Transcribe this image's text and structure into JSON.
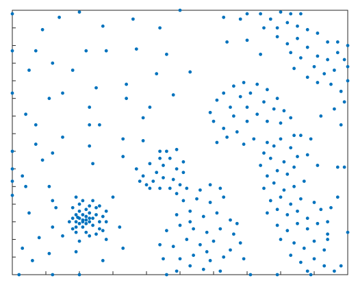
{
  "chart_data": {
    "type": "scatter",
    "color": "#0072bd",
    "xlim": [
      0,
      10
    ],
    "ylim": [
      0,
      15
    ],
    "xticks": [
      0,
      1,
      2,
      3,
      4,
      5,
      6,
      7,
      8,
      9,
      10
    ],
    "yticks": [
      0,
      1,
      2,
      3,
      4,
      5,
      6,
      7,
      8,
      9,
      10,
      11,
      12,
      13,
      14,
      15
    ],
    "x": [
      0.0,
      0.9,
      1.4,
      2.0,
      2.7,
      3.6,
      4.4,
      5.0,
      0.0,
      0.7,
      1.2,
      1.8,
      2.2,
      2.8,
      3.7,
      4.6,
      0.5,
      1.5,
      2.5,
      3.4,
      4.3,
      0.0,
      1.1,
      2.3,
      3.4,
      0.4,
      0.7,
      1.5,
      2.3,
      2.6,
      3.3,
      3.9,
      0.7,
      1.2,
      2.3,
      0.0,
      0.9,
      2.4,
      3.3,
      3.9,
      4.1,
      4.8,
      5.3,
      4.4,
      0.0,
      0.0,
      0.3,
      0.4,
      0.0,
      1.1,
      1.2,
      0.5,
      1.3,
      1.2,
      1.5,
      2.0,
      2.3,
      0.3,
      0.6,
      0.8,
      1.1,
      1.9,
      2.7,
      3.3,
      3.2,
      3.0,
      1.9,
      2.8,
      1.2,
      2.0,
      4.6,
      0.2,
      1.9,
      2.0,
      2.1,
      2.2,
      2.3,
      2.0,
      2.1,
      1.9,
      2.2,
      2.4,
      1.8,
      2.3,
      2.0,
      2.2,
      1.9,
      2.1,
      2.4,
      2.5,
      2.6,
      2.5,
      2.3,
      2.0,
      1.8,
      1.8,
      2.6,
      2.7,
      2.8,
      2.6,
      2.1,
      2.4,
      1.9,
      2.2,
      2.5,
      2.8,
      1.7,
      2.7,
      2.3,
      2.1,
      2.2,
      1.95,
      3.7,
      3.9,
      4.1,
      4.3,
      4.5,
      4.7,
      4.9,
      5.1,
      4.0,
      4.2,
      4.5,
      4.8,
      5.0,
      4.4,
      4.6,
      4.9,
      5.1,
      3.8,
      4.1,
      4.4,
      4.7,
      5.2,
      4.9,
      4.9,
      5.3,
      5.7,
      6.2,
      4.5,
      5.0,
      5.4,
      5.9,
      6.3,
      4.4,
      4.8,
      5.2,
      5.6,
      6.0,
      6.5,
      4.6,
      5.0,
      5.4,
      5.8,
      6.2,
      6.6,
      4.9,
      5.3,
      5.7,
      6.1,
      6.5,
      5.1,
      5.5,
      5.9,
      6.3,
      5.6,
      5.9,
      6.2,
      6.7,
      6.8,
      6.9,
      5.3,
      5.8,
      5.9,
      6.1,
      6.3,
      6.6,
      6.9,
      7.3,
      7.6,
      7.9,
      6.0,
      6.3,
      6.5,
      6.8,
      7.1,
      7.5,
      7.8,
      8.1,
      6.4,
      6.7,
      7.0,
      7.3,
      7.6,
      6.1,
      6.9,
      7.2,
      7.6,
      6.6,
      7.0,
      8.0,
      8.3,
      8.4,
      7.5,
      7.8,
      8.0,
      8.3,
      7.4,
      7.7,
      8.1,
      8.5,
      7.6,
      7.9,
      8.2,
      8.7,
      7.5,
      7.8,
      8.1,
      8.4,
      7.7,
      8.0,
      8.3,
      8.6,
      9.0,
      7.6,
      7.9,
      8.2,
      8.5,
      8.8,
      9.2,
      7.9,
      8.2,
      8.5,
      8.8,
      9.1,
      9.4,
      8.0,
      8.4,
      8.7,
      9.0,
      9.3,
      8.3,
      8.6,
      9.0,
      9.3,
      8.8,
      8.4,
      8.8,
      8.9,
      9.1,
      8.6,
      9.4,
      9.4,
      6.3,
      6.8,
      7.0,
      7.4,
      7.7,
      8.0,
      8.3,
      8.6,
      7.5,
      7.9,
      8.2,
      8.5,
      8.8,
      9.1,
      9.4,
      7.9,
      8.2,
      8.5,
      8.8,
      9.1,
      9.4,
      9.7,
      8.3,
      8.6,
      9.0,
      9.3,
      9.6,
      9.9,
      9.5,
      9.8,
      10.0,
      9.7,
      10.0,
      8.4,
      8.8,
      6.4,
      7.0,
      7.4,
      9.1,
      9.6,
      9.8,
      9.2,
      9.9,
      10.0,
      9.7,
      9.9,
      10.0,
      9.8,
      9.5,
      9.7,
      7.1,
      7.9,
      8.9,
      9.6
    ],
    "values": [
      14.8,
      13.9,
      14.6,
      14.9,
      14.1,
      14.5,
      14.0,
      15.0,
      12.7,
      12.7,
      12.0,
      11.6,
      12.7,
      12.7,
      12.8,
      12.5,
      11.6,
      10.3,
      10.6,
      10.0,
      11.4,
      10.3,
      10.0,
      9.5,
      10.8,
      9.1,
      8.5,
      7.8,
      8.5,
      8.5,
      7.7,
      8.9,
      7.4,
      6.9,
      7.3,
      7.0,
      6.5,
      6.3,
      6.7,
      7.6,
      9.5,
      10.2,
      11.5,
      7.0,
      6.0,
      5.3,
      5.6,
      5.0,
      4.5,
      5.0,
      4.2,
      3.5,
      3.8,
      2.7,
      2.2,
      1.9,
      2.2,
      1.5,
      0.8,
      2.1,
      1.2,
      1.3,
      0.8,
      1.5,
      2.7,
      4.4,
      4.4,
      2.0,
      0.0,
      0.0,
      0.0,
      0.0,
      3.0,
      3.2,
      3.1,
      3.3,
      3.0,
      2.9,
      3.4,
      3.4,
      2.9,
      3.2,
      3.2,
      3.5,
      3.6,
      3.7,
      2.7,
      2.7,
      2.8,
      3.4,
      3.0,
      3.8,
      3.9,
      4.0,
      3.8,
      2.6,
      2.6,
      3.3,
      3.0,
      3.9,
      4.2,
      4.2,
      2.4,
      2.4,
      2.3,
      3.6,
      3.0,
      2.5,
      3.2,
      3.0,
      3.1,
      3.25,
      6.0,
      5.6,
      6.3,
      5.8,
      6.2,
      6.6,
      6.0,
      5.8,
      5.1,
      5.3,
      5.5,
      5.4,
      5.1,
      6.6,
      7.0,
      7.1,
      6.4,
      5.3,
      4.9,
      4.9,
      4.9,
      4.9,
      4.6,
      0.2,
      0.5,
      0.3,
      0.2,
      0.9,
      0.9,
      1.1,
      0.8,
      1.0,
      1.7,
      1.6,
      2.0,
      1.7,
      1.9,
      1.4,
      2.5,
      2.8,
      2.6,
      2.4,
      2.6,
      2.3,
      3.4,
      3.6,
      3.3,
      3.5,
      3.1,
      4.2,
      4.3,
      4.1,
      4.4,
      4.8,
      5.1,
      4.9,
      2.9,
      1.8,
      0.9,
      3.0,
      1.3,
      9.2,
      9.9,
      10.3,
      10.7,
      10.9,
      10.8,
      10.5,
      10.0,
      8.7,
      8.3,
      9.5,
      10.1,
      10.3,
      9.8,
      9.4,
      9.3,
      7.8,
      8.1,
      8.7,
      9.1,
      8.7,
      7.5,
      7.4,
      7.7,
      7.5,
      9.0,
      9.5,
      8.6,
      8.9,
      7.9,
      6.9,
      7.3,
      7.7,
      7.2,
      6.2,
      6.6,
      6.4,
      6.7,
      5.6,
      5.9,
      5.7,
      5.3,
      4.9,
      5.2,
      4.8,
      5.0,
      4.2,
      4.4,
      4.0,
      4.3,
      4.1,
      3.5,
      3.7,
      3.4,
      3.6,
      3.2,
      3.7,
      2.8,
      2.5,
      2.9,
      2.6,
      2.9,
      2.3,
      2.0,
      1.8,
      1.5,
      1.9,
      1.4,
      1.1,
      0.7,
      0.9,
      0.5,
      0.2,
      6.1,
      6.8,
      7.7,
      6.2,
      7.9,
      3.0,
      2.0,
      14.6,
      14.5,
      14.8,
      14.8,
      14.5,
      14.9,
      14.8,
      14.8,
      14.0,
      14.0,
      14.3,
      14.1,
      13.9,
      13.7,
      13.2,
      13.5,
      13.1,
      13.4,
      12.9,
      12.4,
      12.2,
      13.2,
      12.6,
      12.3,
      11.8,
      11.4,
      11.6,
      12.2,
      10.8,
      10.4,
      11.8,
      12.6,
      13.0,
      11.7,
      11.2,
      13.2,
      13.3,
      12.5,
      10.9,
      9.4,
      8.5,
      9.0,
      9.8,
      11.0,
      6.1,
      6.1,
      2.4,
      0.5,
      3.8,
      4.4,
      0.0,
      0.0,
      0.0,
      0.2
    ]
  }
}
